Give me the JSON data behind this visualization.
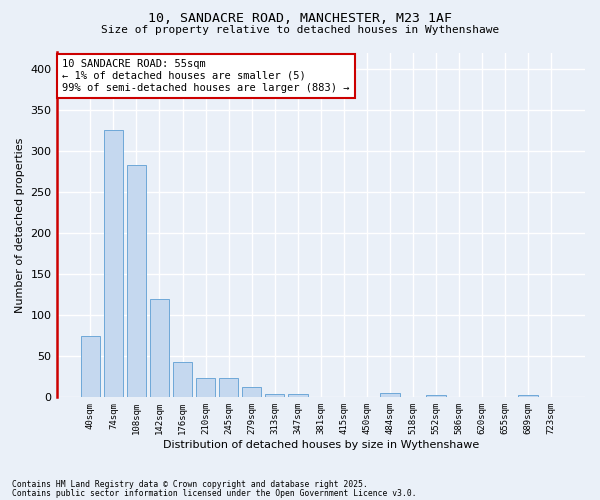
{
  "title_line1": "10, SANDACRE ROAD, MANCHESTER, M23 1AF",
  "title_line2": "Size of property relative to detached houses in Wythenshawe",
  "xlabel": "Distribution of detached houses by size in Wythenshawe",
  "ylabel": "Number of detached properties",
  "categories": [
    "40sqm",
    "74sqm",
    "108sqm",
    "142sqm",
    "176sqm",
    "210sqm",
    "245sqm",
    "279sqm",
    "313sqm",
    "347sqm",
    "381sqm",
    "415sqm",
    "450sqm",
    "484sqm",
    "518sqm",
    "552sqm",
    "586sqm",
    "620sqm",
    "655sqm",
    "689sqm",
    "723sqm"
  ],
  "values": [
    75,
    325,
    283,
    120,
    43,
    23,
    23,
    12,
    4,
    4,
    0,
    0,
    0,
    5,
    0,
    3,
    0,
    0,
    0,
    3,
    0
  ],
  "bar_color": "#c5d8ef",
  "bar_edgecolor": "#6ea8d8",
  "highlight_color": "#cc0000",
  "ylim": [
    0,
    420
  ],
  "yticks": [
    0,
    50,
    100,
    150,
    200,
    250,
    300,
    350,
    400
  ],
  "background_color": "#eaf0f8",
  "grid_color": "#ffffff",
  "annotation_text": "10 SANDACRE ROAD: 55sqm\n← 1% of detached houses are smaller (5)\n99% of semi-detached houses are larger (883) →",
  "footnote_line1": "Contains HM Land Registry data © Crown copyright and database right 2025.",
  "footnote_line2": "Contains public sector information licensed under the Open Government Licence v3.0."
}
